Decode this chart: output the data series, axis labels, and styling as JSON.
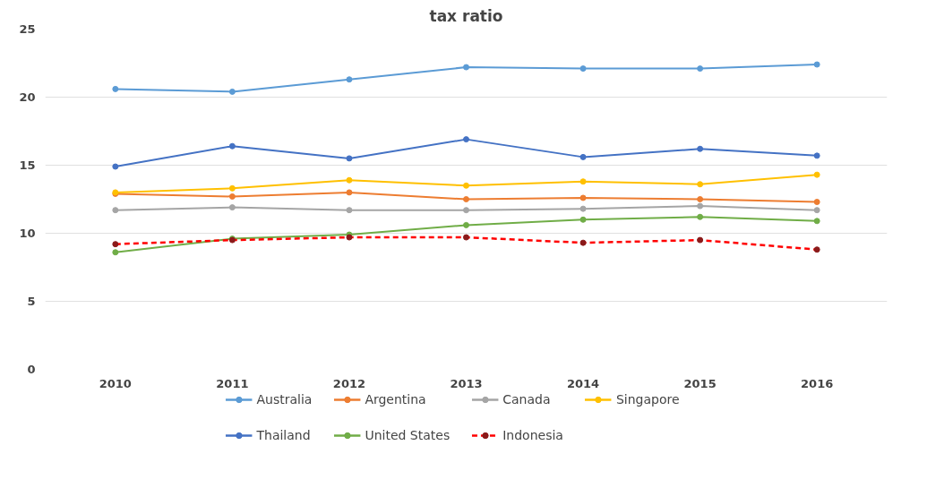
{
  "chart_data": {
    "type": "line",
    "title": "tax ratio",
    "categories": [
      "2010",
      "2011",
      "2012",
      "2013",
      "2014",
      "2015",
      "2016"
    ],
    "series": [
      {
        "name": "Australia",
        "color": "#5b9bd5",
        "values": [
          20.6,
          20.4,
          21.3,
          22.2,
          22.1,
          22.1,
          22.4
        ]
      },
      {
        "name": "Argentina",
        "color": "#ed7d31",
        "values": [
          12.9,
          12.7,
          13.0,
          12.5,
          12.6,
          12.5,
          12.3
        ]
      },
      {
        "name": "Canada",
        "color": "#a5a5a5",
        "values": [
          11.7,
          11.9,
          11.7,
          11.7,
          11.8,
          12.0,
          11.7
        ]
      },
      {
        "name": "Singapore",
        "color": "#ffc000",
        "values": [
          13.0,
          13.3,
          13.9,
          13.5,
          13.8,
          13.6,
          14.3
        ]
      },
      {
        "name": "Thailand",
        "color": "#4472c4",
        "values": [
          14.9,
          16.4,
          15.5,
          16.9,
          15.6,
          16.2,
          15.7
        ]
      },
      {
        "name": "United States",
        "color": "#70ad47",
        "values": [
          8.6,
          9.6,
          9.9,
          10.6,
          11.0,
          11.2,
          10.9
        ]
      },
      {
        "name": "Indonesia",
        "color": "#ff0000",
        "line_style": "dashed",
        "values": [
          9.2,
          9.5,
          9.7,
          9.7,
          9.3,
          9.5,
          8.8
        ]
      }
    ],
    "ylim": [
      0,
      25
    ],
    "yticks": [
      0,
      5,
      10,
      15,
      20,
      25
    ],
    "grid": "y",
    "legend": "bottom",
    "marker": "circle",
    "line_style": "solid"
  }
}
